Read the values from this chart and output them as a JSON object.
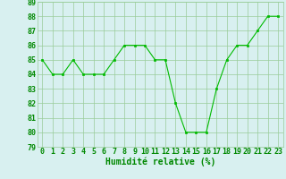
{
  "x": [
    0,
    1,
    2,
    3,
    4,
    5,
    6,
    7,
    8,
    9,
    10,
    11,
    12,
    13,
    14,
    15,
    16,
    17,
    18,
    19,
    20,
    21,
    22,
    23
  ],
  "y": [
    85,
    84,
    84,
    85,
    84,
    84,
    84,
    85,
    86,
    86,
    86,
    85,
    85,
    82,
    80,
    80,
    80,
    83,
    85,
    86,
    86,
    87,
    88,
    88
  ],
  "line_color": "#00bb00",
  "marker_color": "#00bb00",
  "bg_color": "#d8f0f0",
  "grid_color": "#99cc99",
  "xlabel": "Humidité relative (%)",
  "xlabel_color": "#008800",
  "xlabel_fontsize": 7,
  "tick_color": "#008800",
  "tick_fontsize": 6,
  "ylim": [
    79,
    89
  ],
  "xlim": [
    -0.5,
    23.5
  ],
  "yticks": [
    79,
    80,
    81,
    82,
    83,
    84,
    85,
    86,
    87,
    88,
    89
  ],
  "xticks": [
    0,
    1,
    2,
    3,
    4,
    5,
    6,
    7,
    8,
    9,
    10,
    11,
    12,
    13,
    14,
    15,
    16,
    17,
    18,
    19,
    20,
    21,
    22,
    23
  ]
}
